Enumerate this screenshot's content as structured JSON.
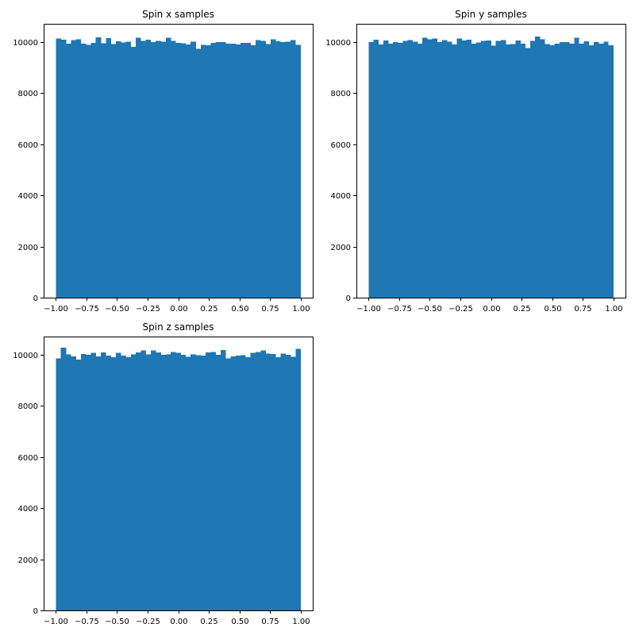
{
  "chart_data": [
    {
      "type": "bar",
      "title": "Spin x samples",
      "color": "#1f77b4",
      "bin_range": [
        -1.0,
        1.0
      ],
      "xlim": [
        -1.0,
        1.0
      ],
      "ylim": [
        0,
        10700
      ],
      "xticks": [
        "−1.00",
        "−0.75",
        "−0.50",
        "−0.25",
        "0.00",
        "0.25",
        "0.50",
        "0.75",
        "1.00"
      ],
      "yticks": [
        "0",
        "2000",
        "4000",
        "6000",
        "8000",
        "10000"
      ],
      "values": [
        10120,
        10080,
        9920,
        10070,
        10090,
        9920,
        9880,
        9960,
        10180,
        9940,
        10140,
        9910,
        10020,
        9970,
        10000,
        9800,
        10150,
        10030,
        10080,
        9990,
        10040,
        10000,
        10160,
        10040,
        9960,
        9940,
        9890,
        10000,
        9730,
        9880,
        9860,
        9950,
        9990,
        9990,
        9930,
        9930,
        9890,
        9950,
        9950,
        9870,
        10060,
        10030,
        9910,
        10100,
        10020,
        9990,
        10000,
        10060,
        9880
      ]
    },
    {
      "type": "bar",
      "title": "Spin y samples",
      "color": "#1f77b4",
      "bin_range": [
        -1.0,
        1.0
      ],
      "xlim": [
        -1.0,
        1.0
      ],
      "ylim": [
        0,
        10700
      ],
      "xticks": [
        "−1.00",
        "−0.75",
        "−0.50",
        "−0.25",
        "0.00",
        "0.25",
        "0.50",
        "0.75",
        "1.00"
      ],
      "yticks": [
        "0",
        "2000",
        "4000",
        "6000",
        "8000",
        "10000"
      ],
      "values": [
        9980,
        10080,
        9900,
        10050,
        9920,
        9990,
        9950,
        10030,
        10070,
        10010,
        9920,
        10150,
        10090,
        10130,
        9990,
        10060,
        10010,
        9900,
        10130,
        10050,
        10080,
        9920,
        9970,
        10040,
        10050,
        9840,
        10030,
        10060,
        9900,
        9910,
        10050,
        9930,
        9760,
        10040,
        10210,
        10100,
        9910,
        9860,
        9930,
        9990,
        9980,
        9920,
        10150,
        9930,
        10020,
        9870,
        9990,
        9930,
        10010,
        9870
      ]
    },
    {
      "type": "bar",
      "title": "Spin z samples",
      "color": "#1f77b4",
      "bin_range": [
        -1.0,
        1.0
      ],
      "xlim": [
        -1.0,
        1.0
      ],
      "ylim": [
        0,
        10700
      ],
      "xticks": [
        "−1.00",
        "−0.75",
        "−0.50",
        "−0.25",
        "0.00",
        "0.25",
        "0.50",
        "0.75",
        "1.00"
      ],
      "yticks": [
        "0",
        "2000",
        "4000",
        "6000",
        "8000",
        "10000"
      ],
      "values": [
        9840,
        10270,
        10000,
        9930,
        9800,
        10020,
        9990,
        10060,
        9920,
        10080,
        9960,
        9900,
        10060,
        9960,
        9890,
        10010,
        10080,
        10160,
        10000,
        10160,
        10080,
        9980,
        10000,
        10100,
        10070,
        9980,
        9910,
        10000,
        9970,
        9960,
        10080,
        10090,
        9980,
        10170,
        9850,
        9930,
        9960,
        9970,
        9900,
        10060,
        10090,
        10150,
        10030,
        10020,
        9890,
        10040,
        9990,
        9910,
        10220
      ]
    }
  ]
}
